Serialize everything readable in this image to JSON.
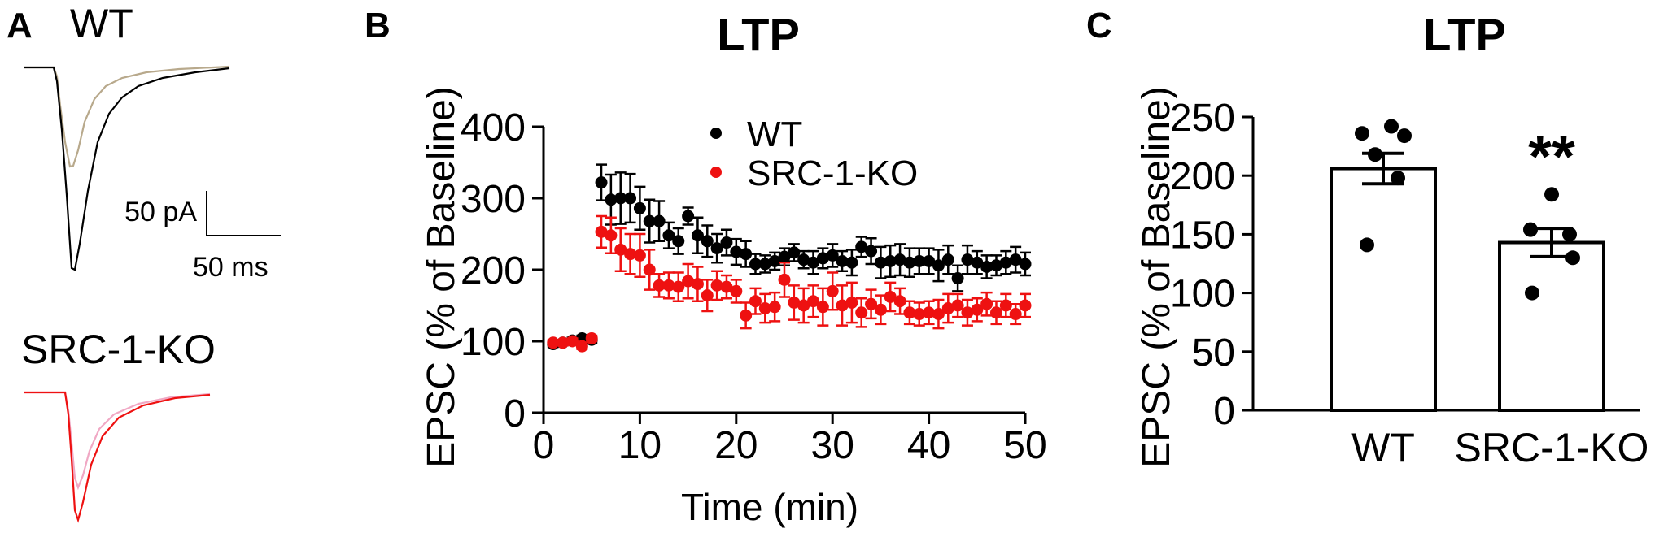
{
  "colors": {
    "wt": "#000000",
    "ko": "#ee1111",
    "wt_trace_pre": "#b8a98c",
    "ko_trace_pre": "#f0a8c4",
    "ko_trace_post": "#ee1111"
  },
  "panel_a": {
    "letter": "A",
    "wt_label": "WT",
    "ko_label": "SRC-1-KO",
    "scale_current": "50 pA",
    "scale_time": "50 ms"
  },
  "chart_data": [
    {
      "panel": "B",
      "type": "scatter",
      "title": "LTP",
      "xlabel": "Time (min)",
      "ylabel": "EPSC (% of Baseline)",
      "xlim": [
        0,
        50
      ],
      "ylim": [
        0,
        400
      ],
      "xticks": [
        0,
        10,
        20,
        30,
        40,
        50
      ],
      "yticks": [
        0,
        100,
        200,
        300,
        400
      ],
      "legend_position": "top-center",
      "series": [
        {
          "name": "WT",
          "color": "#000000",
          "x": [
            1,
            2,
            3,
            4,
            5,
            6,
            7,
            8,
            9,
            10,
            11,
            12,
            13,
            14,
            15,
            16,
            17,
            18,
            19,
            20,
            21,
            22,
            23,
            24,
            25,
            26,
            27,
            28,
            29,
            30,
            31,
            32,
            33,
            34,
            35,
            36,
            37,
            38,
            39,
            40,
            41,
            42,
            43,
            44,
            45,
            46,
            47,
            48,
            49,
            50
          ],
          "y": [
            96,
            98,
            101,
            104,
            102,
            322,
            298,
            300,
            300,
            286,
            268,
            268,
            248,
            240,
            275,
            248,
            240,
            230,
            238,
            225,
            222,
            208,
            208,
            212,
            218,
            224,
            214,
            210,
            216,
            220,
            212,
            210,
            232,
            226,
            210,
            212,
            214,
            210,
            212,
            212,
            206,
            214,
            188,
            214,
            210,
            204,
            206,
            210,
            214,
            208
          ],
          "err": [
            4,
            4,
            4,
            4,
            4,
            25,
            35,
            36,
            34,
            30,
            30,
            28,
            18,
            18,
            12,
            25,
            22,
            20,
            18,
            18,
            18,
            14,
            12,
            12,
            12,
            12,
            12,
            16,
            14,
            16,
            14,
            18,
            14,
            18,
            22,
            22,
            22,
            20,
            18,
            18,
            22,
            20,
            18,
            20,
            16,
            16,
            14,
            16,
            18,
            16
          ]
        },
        {
          "name": "SRC-1-KO",
          "color": "#ee1111",
          "x": [
            1,
            2,
            3,
            4,
            5,
            6,
            7,
            8,
            9,
            10,
            11,
            12,
            13,
            14,
            15,
            16,
            17,
            18,
            19,
            20,
            21,
            22,
            23,
            24,
            25,
            26,
            27,
            28,
            29,
            30,
            31,
            32,
            33,
            34,
            35,
            36,
            37,
            38,
            39,
            40,
            41,
            42,
            43,
            44,
            45,
            46,
            47,
            48,
            49,
            50
          ],
          "y": [
            98,
            98,
            100,
            93,
            104,
            253,
            248,
            228,
            222,
            220,
            200,
            178,
            178,
            176,
            184,
            180,
            164,
            178,
            176,
            170,
            136,
            156,
            146,
            148,
            186,
            154,
            150,
            156,
            148,
            170,
            150,
            154,
            140,
            152,
            144,
            162,
            156,
            140,
            138,
            140,
            138,
            146,
            150,
            140,
            144,
            152,
            140,
            150,
            138,
            150
          ],
          "err": [
            4,
            4,
            4,
            4,
            4,
            22,
            25,
            30,
            28,
            30,
            28,
            16,
            18,
            20,
            24,
            24,
            22,
            20,
            16,
            16,
            18,
            18,
            20,
            20,
            24,
            24,
            24,
            22,
            26,
            26,
            28,
            28,
            20,
            20,
            20,
            20,
            18,
            16,
            16,
            16,
            20,
            20,
            16,
            18,
            16,
            16,
            16,
            16,
            14,
            16
          ]
        }
      ]
    },
    {
      "panel": "C",
      "type": "bar",
      "title": "LTP",
      "xlabel": "",
      "ylabel": "EPSC (% of Baseline)",
      "ylim": [
        0,
        250
      ],
      "yticks": [
        0,
        50,
        100,
        150,
        200,
        250
      ],
      "categories": [
        "WT",
        "SRC-1-KO"
      ],
      "values": [
        206,
        143
      ],
      "sem": [
        13,
        12
      ],
      "points": [
        [
          242,
          236,
          234,
          218,
          198,
          141
        ],
        [
          184,
          154,
          150,
          130,
          100
        ]
      ],
      "annotation": "**"
    }
  ]
}
